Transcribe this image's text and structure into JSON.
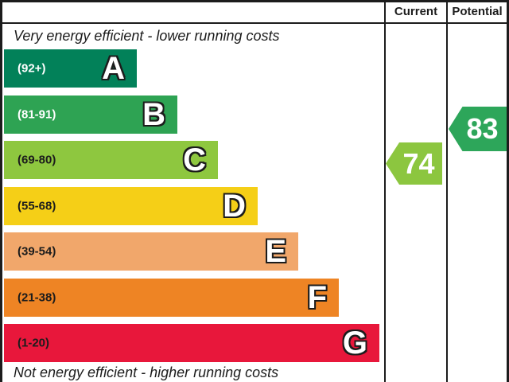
{
  "header": {
    "current_label": "Current",
    "potential_label": "Potential"
  },
  "captions": {
    "top": "Very energy efficient - lower running costs",
    "bottom": "Not energy efficient - higher running costs"
  },
  "bands": [
    {
      "letter": "A",
      "range": "(92+)",
      "color": "#028159",
      "range_text_color": "#ffffff"
    },
    {
      "letter": "B",
      "range": "(81-91)",
      "color": "#2ea353",
      "range_text_color": "#ffffff"
    },
    {
      "letter": "C",
      "range": "(69-80)",
      "color": "#8ec73f",
      "range_text_color": "#1c1c1c"
    },
    {
      "letter": "D",
      "range": "(55-68)",
      "color": "#f5cf17",
      "range_text_color": "#1c1c1c"
    },
    {
      "letter": "E",
      "range": "(39-54)",
      "color": "#f1a76b",
      "range_text_color": "#1c1c1c"
    },
    {
      "letter": "F",
      "range": "(21-38)",
      "color": "#ee8424",
      "range_text_color": "#1c1c1c"
    },
    {
      "letter": "G",
      "range": "(1-20)",
      "color": "#e8173b",
      "range_text_color": "#1c1c1c"
    }
  ],
  "current": {
    "value": "74",
    "color": "#8cc63f"
  },
  "potential": {
    "value": "83",
    "color": "#2da65a"
  },
  "chart_data": {
    "type": "bar",
    "categories": [
      "A",
      "B",
      "C",
      "D",
      "E",
      "F",
      "G"
    ],
    "band_ranges": [
      "92+",
      "81-91",
      "69-80",
      "55-68",
      "39-54",
      "21-38",
      "1-20"
    ],
    "band_colors": [
      "#028159",
      "#2ea353",
      "#8ec73f",
      "#f5cf17",
      "#f1a76b",
      "#ee8424",
      "#e8173b"
    ],
    "current_rating": 74,
    "potential_rating": 83,
    "top_caption": "Very energy efficient - lower running costs",
    "bottom_caption": "Not energy efficient - higher running costs",
    "columns": [
      "Current",
      "Potential"
    ]
  }
}
